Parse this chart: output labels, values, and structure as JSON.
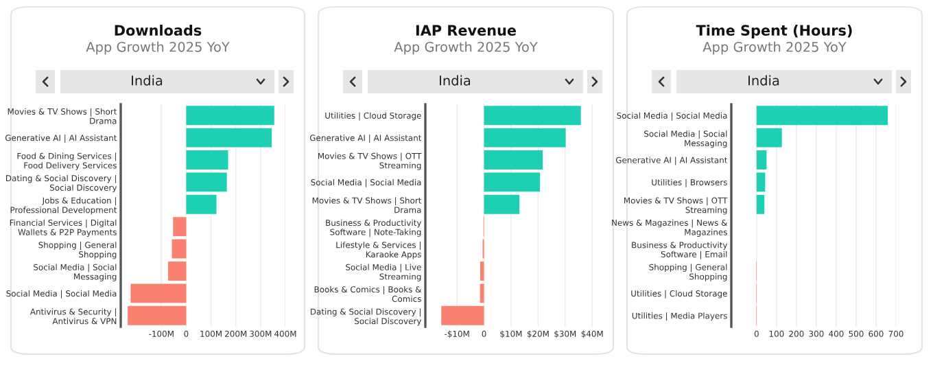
{
  "chart_data": [
    {
      "type": "bar",
      "orientation": "horizontal",
      "title": "Downloads",
      "subtitle": "App Growth 2025 YoY",
      "annotations": [
        "India"
      ],
      "categories": [
        "Movies & TV Shows | Short\nDrama",
        "Generative AI | AI Assistant",
        "Food & Dining Services |\nFood Delivery Services",
        "Dating & Social Discovery |\nSocial Discovery",
        "Jobs & Education |\nProfessional Development",
        "Financial Services | Digital\nWallets & P2P Payments",
        "Shopping | General\nShopping",
        "Social Media | Social\nMessaging",
        "Social Media | Social Media",
        "Antivirus & Security |\nAntivirus & VPN"
      ],
      "values": [
        355,
        345,
        169,
        164,
        122,
        -53,
        -58,
        -73,
        -224,
        -236
      ],
      "colors": [
        "#1dcfb3",
        "#1dcfb3",
        "#1dcfb3",
        "#1dcfb3",
        "#1dcfb3",
        "#fa8070",
        "#fa8070",
        "#fa8070",
        "#fa8070",
        "#fa8070"
      ],
      "xlim": [
        -264,
        400
      ],
      "xticks": [
        {
          "value": -100,
          "label": "-100M"
        },
        0,
        {
          "value": 100,
          "label": "100M"
        },
        {
          "value": 200,
          "label": "200M"
        },
        {
          "value": 300,
          "label": "300M"
        },
        {
          "value": 400,
          "label": "400M"
        }
      ],
      "grid": "x"
    },
    {
      "type": "bar",
      "orientation": "horizontal",
      "title": "IAP Revenue",
      "subtitle": "App Growth 2025 YoY",
      "annotations": [
        "India"
      ],
      "categories": [
        "Utilities | Cloud Storage",
        "Generative AI | AI Assistant",
        "Movies & TV Shows | OTT\nStreaming",
        "Social Media | Social Media",
        "Movies & TV Shows | Short\nDrama",
        "Business & Productivity\nSoftware | Note-Taking",
        "Lifestyle & Services |\nKaraoke Apps",
        "Social Media | Live\nStreaming",
        "Books & Comics | Books &\nComics",
        "Dating & Social Discovery |\nSocial Discovery"
      ],
      "values": [
        35.8,
        30.2,
        21.7,
        20.7,
        13.1,
        -0.2,
        -0.5,
        -1.4,
        -1.5,
        -15.8
      ],
      "colors": [
        "#1dcfb3",
        "#1dcfb3",
        "#1dcfb3",
        "#1dcfb3",
        "#1dcfb3",
        "#fa8070",
        "#fa8070",
        "#fa8070",
        "#fa8070",
        "#fa8070"
      ],
      "xlim": [
        -21.7,
        40.2
      ],
      "xticks": [
        {
          "value": -10,
          "label": "-$10M"
        },
        0,
        {
          "value": 10,
          "label": "$10M"
        },
        {
          "value": 20,
          "label": "$20M"
        },
        {
          "value": 30,
          "label": "$30M"
        },
        {
          "value": 40,
          "label": "$40M"
        }
      ],
      "grid": "x"
    },
    {
      "type": "bar",
      "orientation": "horizontal",
      "title": "Time Spent (Hours)",
      "subtitle": "App Growth 2025 YoY",
      "annotations": [
        "India"
      ],
      "categories": [
        "Social Media | Social Media",
        "Social Media | Social\nMessaging",
        "Generative AI | AI Assistant",
        "Utilities | Browsers",
        "Movies & TV Shows | OTT\nStreaming",
        "News & Magazines | News &\nMagazines",
        "Business & Productivity\nSoftware | Email",
        "Shopping | General\nShopping",
        "Utilities | Cloud Storage",
        "Utilities | Media Players"
      ],
      "values": [
        659,
        127,
        50,
        43,
        39,
        null,
        null,
        -2,
        -2,
        -2
      ],
      "colors": [
        "#1dcfb3",
        "#1dcfb3",
        "#1dcfb3",
        "#1dcfb3",
        "#1dcfb3",
        "#fa8070",
        "#fa8070",
        "#fa8070",
        "#fa8070",
        "#fa8070"
      ],
      "xlim": [
        -127,
        700
      ],
      "xticks": [
        0,
        100,
        200,
        300,
        400,
        500,
        600,
        700
      ],
      "grid": "x"
    }
  ]
}
